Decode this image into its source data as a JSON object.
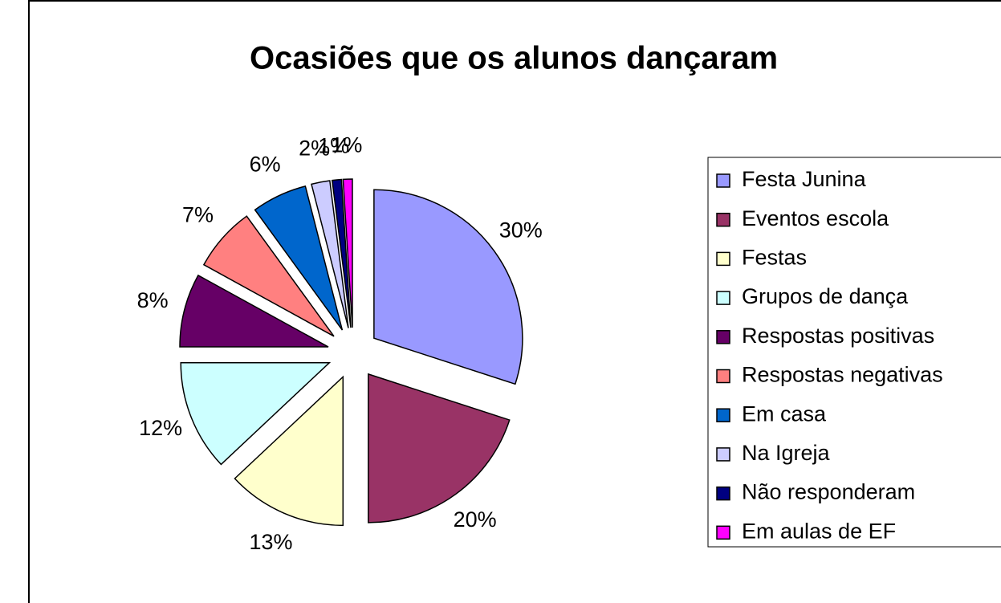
{
  "chart_data": {
    "type": "pie",
    "title": "Ocasiões que os alunos dançaram",
    "categories": [
      "Festa Junina",
      "Eventos escola",
      "Festas",
      "Grupos de dança",
      "Respostas positivas",
      "Respostas negativas",
      "Em casa",
      "Na Igreja",
      "Não responderam",
      "Em aulas de EF"
    ],
    "values": [
      30,
      20,
      13,
      12,
      8,
      7,
      6,
      2,
      1,
      1
    ],
    "value_labels": [
      "30%",
      "20%",
      "13%",
      "12%",
      "8%",
      "7%",
      "6%",
      "2%",
      "1%",
      "1%"
    ],
    "colors": [
      "#9999ff",
      "#993366",
      "#ffffcc",
      "#ccffff",
      "#660066",
      "#ff8080",
      "#0066cc",
      "#ccccff",
      "#000080",
      "#ff00ff"
    ],
    "legend": "right"
  }
}
